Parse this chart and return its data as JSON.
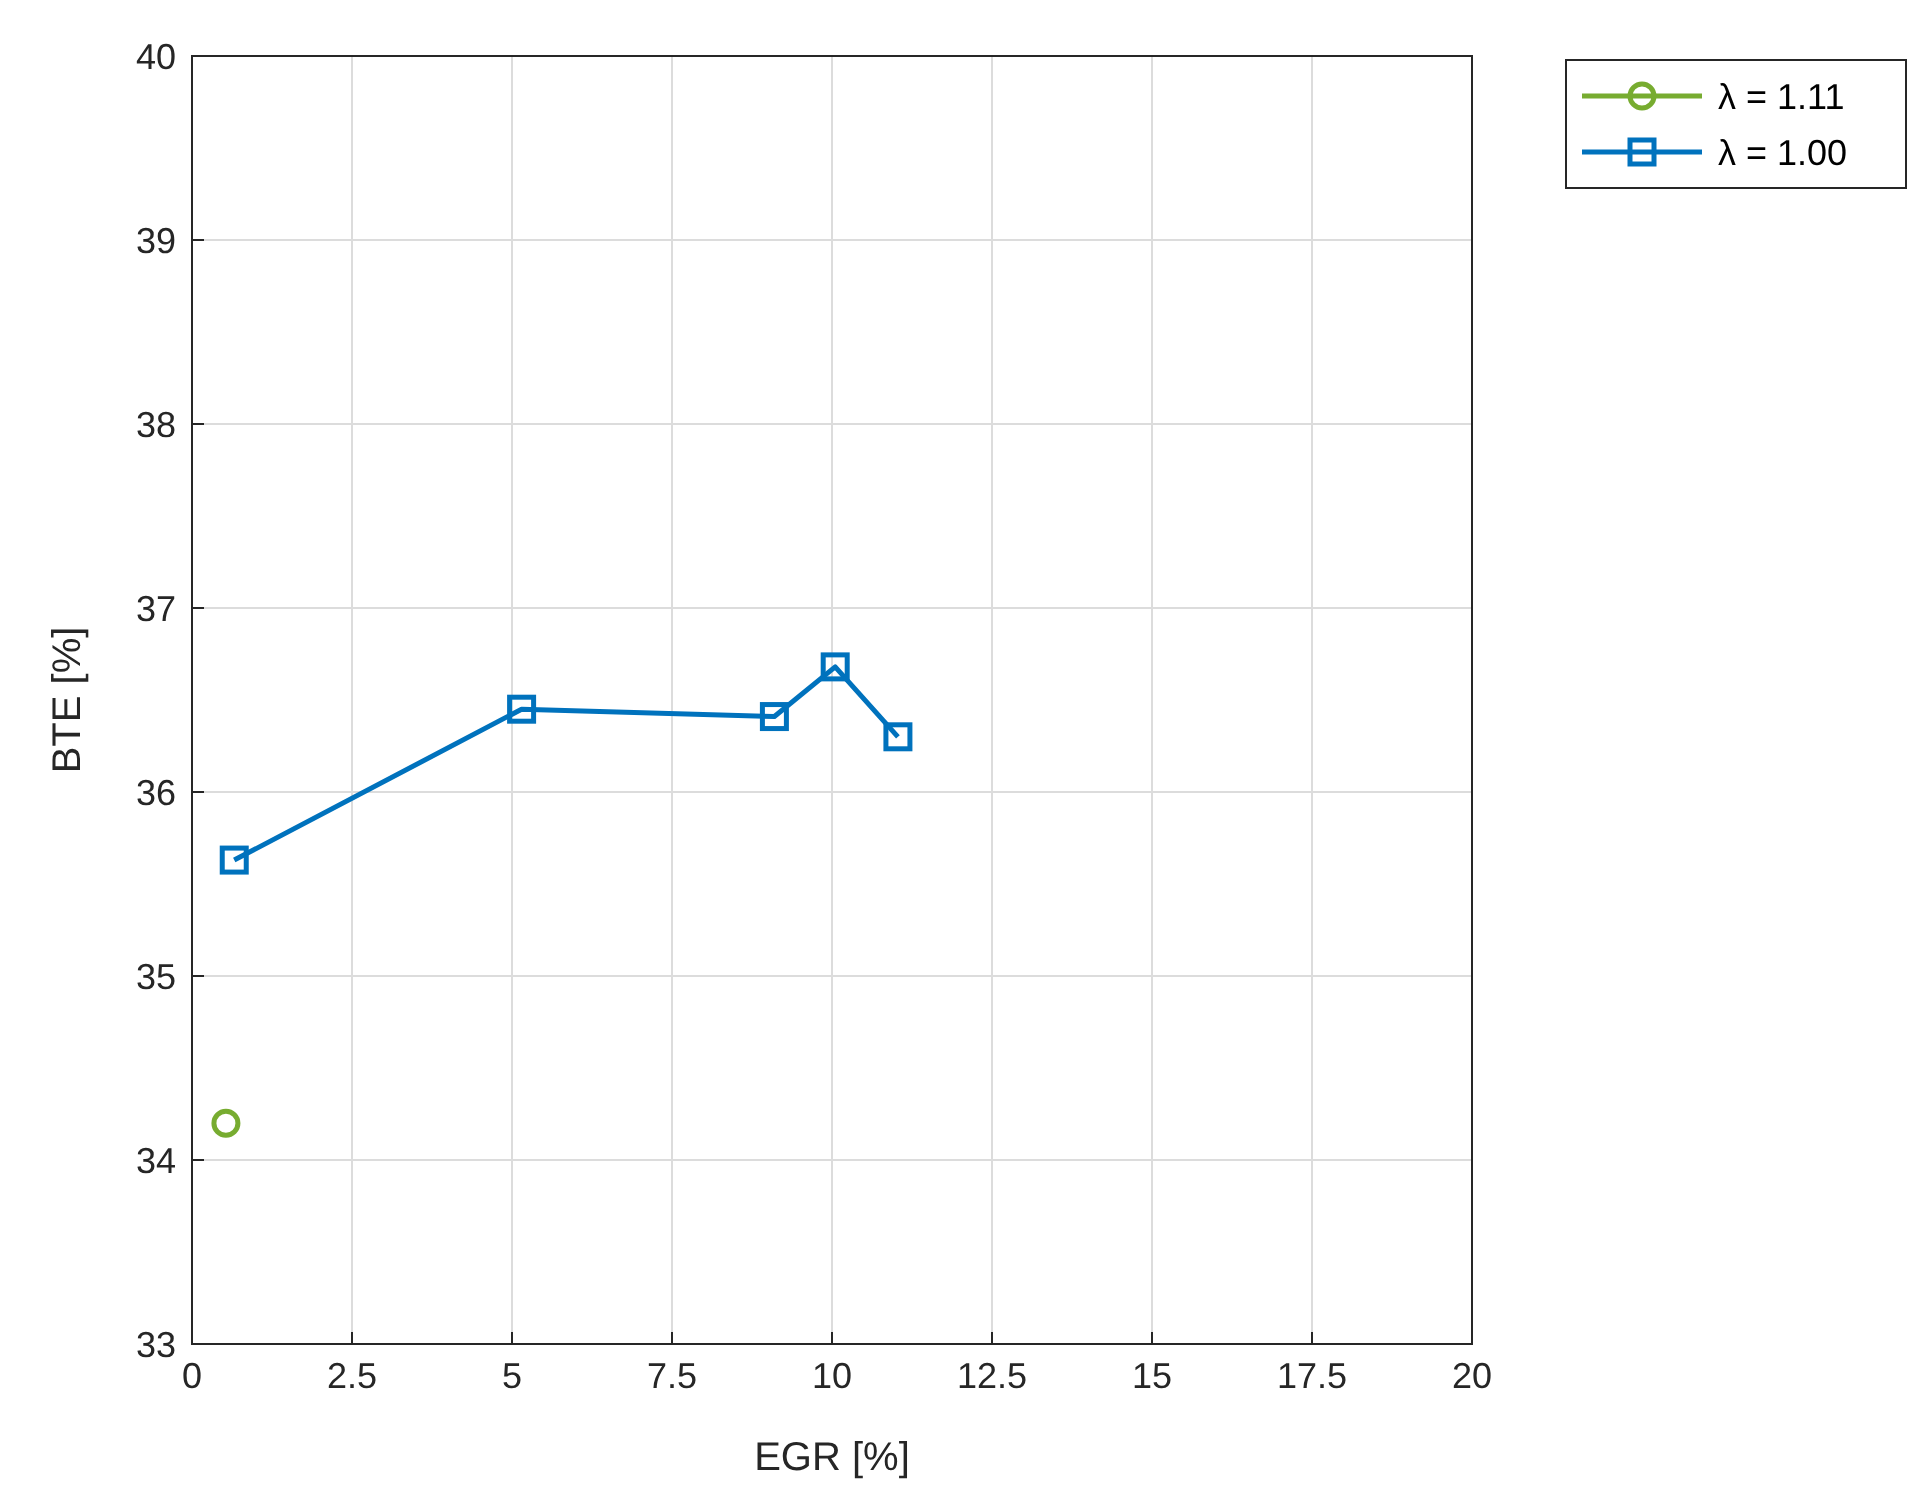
{
  "chart_data": {
    "type": "line",
    "xlabel": "EGR [%]",
    "ylabel": "BTE [%]",
    "xlim": [
      0,
      20
    ],
    "xticks": [
      0,
      2.5,
      5,
      7.5,
      10,
      12.5,
      15,
      17.5,
      20
    ],
    "ylim": [
      33,
      40
    ],
    "yticks": [
      33,
      34,
      35,
      36,
      37,
      38,
      39,
      40
    ],
    "grid": true,
    "legend": "top right",
    "series": [
      {
        "name": "λ = 1.11",
        "color": "#77ac30",
        "marker": "circle",
        "x": [
          0.53
        ],
        "values": [
          34.2
        ]
      },
      {
        "name": "λ = 1.00",
        "color": "#0072bd",
        "marker": "square",
        "x": [
          0.66,
          5.15,
          9.1,
          10.05,
          11.03
        ],
        "values": [
          35.63,
          36.45,
          36.41,
          36.68,
          36.3
        ]
      }
    ]
  }
}
